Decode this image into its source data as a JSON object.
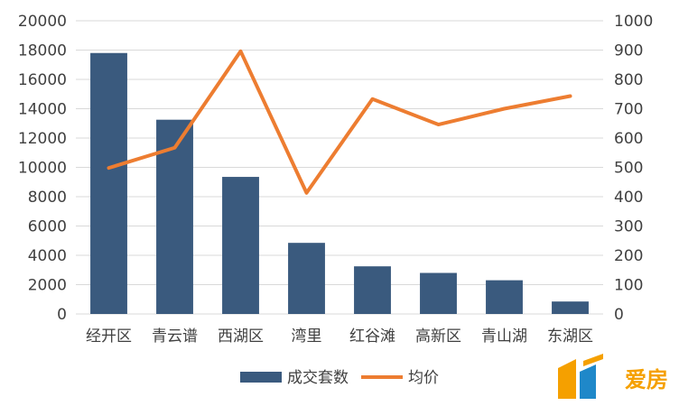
{
  "chart_data": {
    "type": "bar",
    "categories": [
      "经开区",
      "青云谱",
      "西湖区",
      "湾里",
      "红谷滩",
      "高新区",
      "青山湖",
      "东湖区"
    ],
    "series": [
      {
        "name": "成交套数",
        "type": "bar",
        "axis": "left",
        "color": "#3a5a7e",
        "values": [
          17800,
          13250,
          9350,
          4850,
          3250,
          2800,
          2300,
          850
        ]
      },
      {
        "name": "均价",
        "type": "line",
        "axis": "right",
        "color": "#ed7d31",
        "values": [
          498,
          567,
          896,
          413,
          733,
          646,
          700,
          743
        ]
      }
    ],
    "y_left": {
      "min": 0,
      "max": 20000,
      "step": 2000,
      "ticks": [
        "0",
        "2000",
        "4000",
        "6000",
        "8000",
        "10000",
        "12000",
        "14000",
        "16000",
        "18000",
        "20000"
      ]
    },
    "y_right": {
      "min": 0,
      "max": 1000,
      "step": 100,
      "ticks": [
        "0",
        "100",
        "200",
        "300",
        "400",
        "500",
        "600",
        "700",
        "800",
        "900",
        "1000"
      ]
    },
    "grid": true,
    "legend_position": "bottom"
  },
  "logo": {
    "text": "爱房",
    "colors": {
      "primary": "#f5a000",
      "secondary": "#1f88c9"
    }
  }
}
